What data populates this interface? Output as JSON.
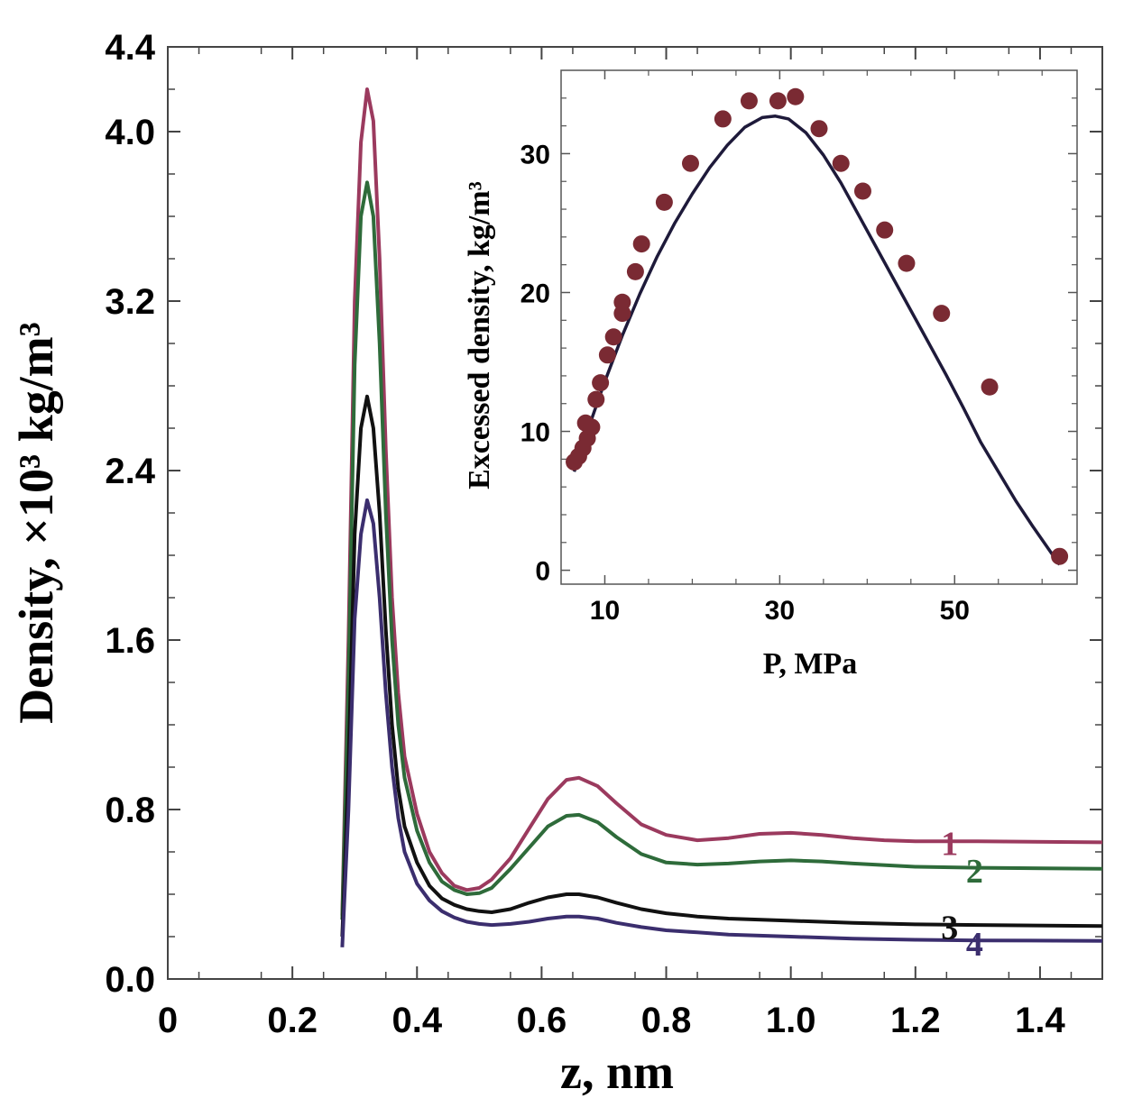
{
  "chart_data": [
    {
      "id": "main",
      "type": "line",
      "xlabel": "z, nm",
      "ylabel": "Density, ×10³ kg/m³",
      "xlim": [
        0,
        1.5
      ],
      "ylim": [
        0,
        4.4
      ],
      "xticks": [
        0,
        0.2,
        0.4,
        0.6,
        0.8,
        1.0,
        1.2,
        1.4
      ],
      "xtick_labels": [
        "0",
        "0.2",
        "0.4",
        "0.6",
        "0.8",
        "1.0",
        "1.2",
        "1.4"
      ],
      "yticks": [
        0.0,
        0.8,
        1.6,
        2.4,
        3.2,
        4.0,
        4.4
      ],
      "ytick_labels": [
        "0.0",
        "0.8",
        "1.6",
        "2.4",
        "3.2",
        "4.0",
        "4.4"
      ],
      "grid": false,
      "series": [
        {
          "name": "1",
          "color": "#9b3a5e",
          "label_pos": [
            1.255,
            0.64
          ],
          "points": [
            [
              0.28,
              0.3
            ],
            [
              0.29,
              1.6
            ],
            [
              0.3,
              3.2
            ],
            [
              0.31,
              3.95
            ],
            [
              0.32,
              4.2
            ],
            [
              0.33,
              4.05
            ],
            [
              0.34,
              3.4
            ],
            [
              0.35,
              2.5
            ],
            [
              0.36,
              1.8
            ],
            [
              0.37,
              1.35
            ],
            [
              0.38,
              1.05
            ],
            [
              0.4,
              0.78
            ],
            [
              0.42,
              0.6
            ],
            [
              0.44,
              0.5
            ],
            [
              0.46,
              0.44
            ],
            [
              0.48,
              0.42
            ],
            [
              0.5,
              0.43
            ],
            [
              0.52,
              0.47
            ],
            [
              0.55,
              0.57
            ],
            [
              0.58,
              0.71
            ],
            [
              0.61,
              0.85
            ],
            [
              0.64,
              0.94
            ],
            [
              0.66,
              0.95
            ],
            [
              0.69,
              0.91
            ],
            [
              0.72,
              0.83
            ],
            [
              0.76,
              0.73
            ],
            [
              0.8,
              0.68
            ],
            [
              0.85,
              0.655
            ],
            [
              0.9,
              0.665
            ],
            [
              0.95,
              0.685
            ],
            [
              1.0,
              0.69
            ],
            [
              1.05,
              0.68
            ],
            [
              1.1,
              0.665
            ],
            [
              1.15,
              0.655
            ],
            [
              1.2,
              0.65
            ],
            [
              1.3,
              0.65
            ],
            [
              1.5,
              0.645
            ]
          ]
        },
        {
          "name": "2",
          "color": "#2e6b3a",
          "label_pos": [
            1.295,
            0.51
          ],
          "points": [
            [
              0.28,
              0.28
            ],
            [
              0.29,
              1.4
            ],
            [
              0.3,
              2.9
            ],
            [
              0.31,
              3.6
            ],
            [
              0.32,
              3.76
            ],
            [
              0.33,
              3.6
            ],
            [
              0.34,
              3.0
            ],
            [
              0.35,
              2.2
            ],
            [
              0.36,
              1.6
            ],
            [
              0.37,
              1.2
            ],
            [
              0.38,
              0.95
            ],
            [
              0.4,
              0.7
            ],
            [
              0.42,
              0.55
            ],
            [
              0.44,
              0.46
            ],
            [
              0.46,
              0.42
            ],
            [
              0.48,
              0.4
            ],
            [
              0.5,
              0.405
            ],
            [
              0.52,
              0.43
            ],
            [
              0.55,
              0.52
            ],
            [
              0.58,
              0.62
            ],
            [
              0.61,
              0.72
            ],
            [
              0.64,
              0.77
            ],
            [
              0.66,
              0.775
            ],
            [
              0.69,
              0.74
            ],
            [
              0.72,
              0.67
            ],
            [
              0.76,
              0.59
            ],
            [
              0.8,
              0.55
            ],
            [
              0.85,
              0.54
            ],
            [
              0.9,
              0.545
            ],
            [
              0.95,
              0.555
            ],
            [
              1.0,
              0.56
            ],
            [
              1.05,
              0.555
            ],
            [
              1.1,
              0.545
            ],
            [
              1.2,
              0.53
            ],
            [
              1.3,
              0.525
            ],
            [
              1.5,
              0.52
            ]
          ]
        },
        {
          "name": "3",
          "color": "#111111",
          "label_pos": [
            1.255,
            0.245
          ],
          "points": [
            [
              0.28,
              0.2
            ],
            [
              0.29,
              1.0
            ],
            [
              0.3,
              2.1
            ],
            [
              0.31,
              2.6
            ],
            [
              0.32,
              2.75
            ],
            [
              0.33,
              2.6
            ],
            [
              0.34,
              2.2
            ],
            [
              0.35,
              1.65
            ],
            [
              0.36,
              1.2
            ],
            [
              0.37,
              0.9
            ],
            [
              0.38,
              0.72
            ],
            [
              0.4,
              0.55
            ],
            [
              0.42,
              0.44
            ],
            [
              0.44,
              0.38
            ],
            [
              0.46,
              0.35
            ],
            [
              0.48,
              0.33
            ],
            [
              0.5,
              0.32
            ],
            [
              0.52,
              0.315
            ],
            [
              0.55,
              0.33
            ],
            [
              0.58,
              0.36
            ],
            [
              0.61,
              0.385
            ],
            [
              0.64,
              0.4
            ],
            [
              0.66,
              0.4
            ],
            [
              0.69,
              0.385
            ],
            [
              0.72,
              0.36
            ],
            [
              0.76,
              0.33
            ],
            [
              0.8,
              0.31
            ],
            [
              0.85,
              0.295
            ],
            [
              0.9,
              0.285
            ],
            [
              1.0,
              0.275
            ],
            [
              1.1,
              0.265
            ],
            [
              1.2,
              0.258
            ],
            [
              1.3,
              0.255
            ],
            [
              1.5,
              0.25
            ]
          ]
        },
        {
          "name": "4",
          "color": "#3b2e6e",
          "label_pos": [
            1.295,
            0.165
          ],
          "points": [
            [
              0.28,
              0.15
            ],
            [
              0.29,
              0.8
            ],
            [
              0.3,
              1.7
            ],
            [
              0.31,
              2.1
            ],
            [
              0.32,
              2.26
            ],
            [
              0.33,
              2.15
            ],
            [
              0.34,
              1.8
            ],
            [
              0.35,
              1.35
            ],
            [
              0.36,
              1.0
            ],
            [
              0.37,
              0.76
            ],
            [
              0.38,
              0.6
            ],
            [
              0.4,
              0.45
            ],
            [
              0.42,
              0.37
            ],
            [
              0.44,
              0.32
            ],
            [
              0.46,
              0.29
            ],
            [
              0.48,
              0.27
            ],
            [
              0.5,
              0.26
            ],
            [
              0.52,
              0.255
            ],
            [
              0.55,
              0.26
            ],
            [
              0.58,
              0.27
            ],
            [
              0.61,
              0.285
            ],
            [
              0.64,
              0.295
            ],
            [
              0.66,
              0.295
            ],
            [
              0.69,
              0.285
            ],
            [
              0.72,
              0.265
            ],
            [
              0.76,
              0.245
            ],
            [
              0.8,
              0.23
            ],
            [
              0.85,
              0.22
            ],
            [
              0.9,
              0.21
            ],
            [
              1.0,
              0.2
            ],
            [
              1.1,
              0.19
            ],
            [
              1.2,
              0.185
            ],
            [
              1.3,
              0.182
            ],
            [
              1.5,
              0.18
            ]
          ]
        }
      ]
    },
    {
      "id": "inset",
      "type": "scatter",
      "xlabel": "P, MPa",
      "ylabel": "Excessed density, kg/m³",
      "xlim": [
        5,
        64
      ],
      "ylim": [
        -1,
        36
      ],
      "xticks": [
        10,
        30,
        50
      ],
      "xtick_labels": [
        "10",
        "30",
        "50"
      ],
      "yticks": [
        0,
        10,
        20,
        30
      ],
      "ytick_labels": [
        "0",
        "10",
        "20",
        "30"
      ],
      "grid": false,
      "marker_color": "#7a2a33",
      "fit_color": "#1e1a3a",
      "points": [
        [
          6.5,
          7.8
        ],
        [
          7.0,
          8.2
        ],
        [
          7.5,
          8.8
        ],
        [
          8.0,
          9.5
        ],
        [
          7.8,
          10.6
        ],
        [
          8.5,
          10.3
        ],
        [
          9.0,
          12.3
        ],
        [
          9.5,
          13.5
        ],
        [
          10.3,
          15.5
        ],
        [
          11.0,
          16.8
        ],
        [
          12.0,
          18.5
        ],
        [
          12.0,
          19.3
        ],
        [
          13.5,
          21.5
        ],
        [
          14.2,
          23.5
        ],
        [
          16.8,
          26.5
        ],
        [
          19.8,
          29.3
        ],
        [
          23.5,
          32.5
        ],
        [
          26.5,
          33.8
        ],
        [
          29.8,
          33.8
        ],
        [
          31.8,
          34.1
        ],
        [
          34.5,
          31.8
        ],
        [
          37.0,
          29.3
        ],
        [
          39.5,
          27.3
        ],
        [
          42.0,
          24.5
        ],
        [
          44.5,
          22.1
        ],
        [
          48.5,
          18.5
        ],
        [
          54.0,
          13.2
        ],
        [
          62.0,
          1.0
        ]
      ],
      "fit_curve": [
        [
          6.5,
          7.1
        ],
        [
          8,
          10.0
        ],
        [
          10,
          13.6
        ],
        [
          12,
          16.9
        ],
        [
          14,
          19.9
        ],
        [
          16,
          22.6
        ],
        [
          18,
          25.0
        ],
        [
          20,
          27.1
        ],
        [
          22,
          29.0
        ],
        [
          24,
          30.6
        ],
        [
          26,
          31.9
        ],
        [
          28,
          32.6
        ],
        [
          29.5,
          32.7
        ],
        [
          31,
          32.5
        ],
        [
          33,
          31.5
        ],
        [
          35,
          29.9
        ],
        [
          37,
          27.9
        ],
        [
          39,
          25.6
        ],
        [
          41,
          23.3
        ],
        [
          43,
          21.0
        ],
        [
          45,
          18.7
        ],
        [
          47,
          16.4
        ],
        [
          49,
          14.1
        ],
        [
          51,
          11.7
        ],
        [
          53,
          9.2
        ],
        [
          55,
          7.1
        ],
        [
          57,
          5.0
        ],
        [
          59,
          3.1
        ],
        [
          61,
          1.3
        ],
        [
          62,
          0.4
        ]
      ]
    }
  ]
}
